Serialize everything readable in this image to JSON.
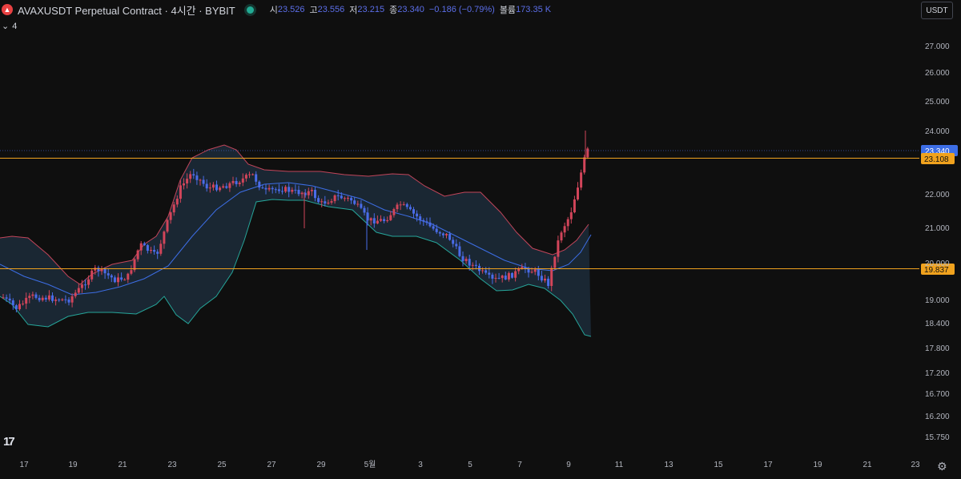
{
  "header": {
    "title": "AVAXUSDT Perpetual Contract · 4시간 · BYBIT",
    "open_label": "시",
    "open": "23.526",
    "high_label": "고",
    "high": "23.556",
    "low_label": "저",
    "low": "23.215",
    "close_label": "종",
    "close": "23.340",
    "change": "−0.186 (−0.79%)",
    "volume_label": "볼륨",
    "volume": "173.35 K",
    "indicator_count": "4",
    "currency": "USDT"
  },
  "price_axis": {
    "labels": [
      "27.000",
      "26.000",
      "25.000",
      "24.000",
      "22.000",
      "21.000",
      "20.000",
      "19.000",
      "18.400",
      "17.800",
      "17.200",
      "16.700",
      "16.200",
      "15.750"
    ],
    "current_price": "23.340",
    "level_upper": "23.108",
    "level_lower": "19.837"
  },
  "time_axis": {
    "labels": [
      "17",
      "19",
      "21",
      "23",
      "25",
      "27",
      "29",
      "5월",
      "3",
      "5",
      "7",
      "9",
      "11",
      "13",
      "15",
      "17",
      "19",
      "21",
      "23"
    ]
  },
  "colors": {
    "background": "#0f0f0f",
    "up": "#d2455a",
    "down": "#4a6ce8",
    "upper_band": "#c2455a",
    "lower_band": "#26a69a",
    "basis": "#3d6ee6",
    "band_fill": "#1c2b3a",
    "level_line": "#f0a21e"
  },
  "icons": {
    "logo": "tradingview-logo-icon",
    "settings": "gear-icon",
    "status": "market-open-dot-icon"
  }
}
